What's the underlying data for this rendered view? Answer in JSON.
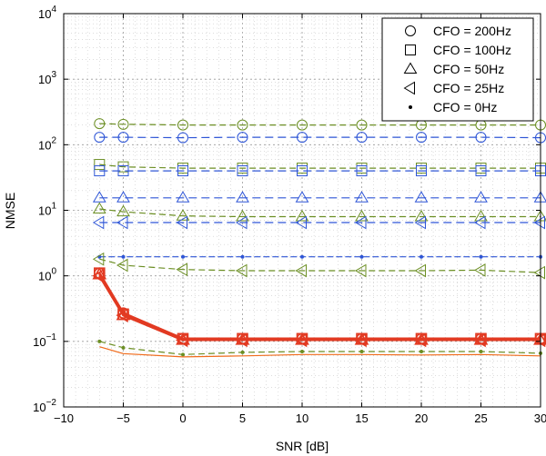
{
  "chart_data": {
    "type": "line",
    "xlabel": "SNR [dB]",
    "ylabel": "NMSE",
    "xlim": [
      -10,
      30
    ],
    "ylim": [
      0.01,
      10000
    ],
    "yscale": "log",
    "grid": true,
    "legend_placement": "top-right",
    "x_ticks": [
      "−10",
      "−5",
      "0",
      "5",
      "10",
      "15",
      "20",
      "25",
      "30"
    ],
    "x_tick_values": [
      -10,
      -5,
      0,
      5,
      10,
      15,
      20,
      25,
      30
    ],
    "y_ticks": [
      {
        "value": 0.01,
        "base": "10",
        "exp": "−2"
      },
      {
        "value": 0.1,
        "base": "10",
        "exp": "−1"
      },
      {
        "value": 1,
        "base": "10",
        "exp": "0"
      },
      {
        "value": 10,
        "base": "10",
        "exp": "1"
      },
      {
        "value": 100,
        "base": "10",
        "exp": "2"
      },
      {
        "value": 1000,
        "base": "10",
        "exp": "3"
      },
      {
        "value": 10000,
        "base": "10",
        "exp": "4"
      }
    ],
    "x": [
      -7,
      -5,
      0,
      5,
      10,
      15,
      20,
      25,
      30
    ],
    "legend": [
      {
        "label": "CFO = 200Hz",
        "marker": "circle"
      },
      {
        "label": "CFO = 100Hz",
        "marker": "square"
      },
      {
        "label": "CFO = 50Hz",
        "marker": "triangle-up"
      },
      {
        "label": "CFO = 25Hz",
        "marker": "triangle-left"
      },
      {
        "label": "CFO = 0Hz",
        "marker": "dot"
      }
    ],
    "series": [
      {
        "marker": "circle",
        "color": "#6b8e23",
        "dash": "7,4",
        "values": [
          210,
          205,
          200,
          200,
          200,
          200,
          200,
          200,
          200
        ]
      },
      {
        "marker": "circle",
        "color": "#2e55d6",
        "dash": "9,5",
        "values": [
          130,
          130,
          128,
          130,
          130,
          130,
          130,
          130,
          128
        ]
      },
      {
        "marker": "square",
        "color": "#6b8e23",
        "dash": "7,4",
        "values": [
          50,
          46,
          44,
          44,
          44,
          44,
          44,
          44,
          44
        ]
      },
      {
        "marker": "square",
        "color": "#2e55d6",
        "dash": "9,5",
        "values": [
          40,
          40,
          40,
          40,
          40,
          40,
          40,
          40,
          40
        ]
      },
      {
        "marker": "triangle-up",
        "color": "#2e55d6",
        "dash": "9,5",
        "values": [
          15.5,
          15.5,
          15.5,
          15.5,
          15.5,
          15.5,
          15.5,
          15.5,
          15.5
        ]
      },
      {
        "marker": "triangle-up",
        "color": "#6b8e23",
        "dash": "7,4",
        "values": [
          10.5,
          9.5,
          8.2,
          8.0,
          8.0,
          8.0,
          8.0,
          8.0,
          8.0
        ]
      },
      {
        "marker": "triangle-left",
        "color": "#2e55d6",
        "dash": "9,5",
        "values": [
          6.5,
          6.5,
          6.5,
          6.5,
          6.5,
          6.5,
          6.5,
          6.5,
          6.5
        ]
      },
      {
        "marker": "dot",
        "color": "#2e55d6",
        "dash": "7,3",
        "values": [
          1.95,
          1.95,
          1.95,
          1.95,
          1.95,
          1.95,
          1.95,
          1.95,
          1.95
        ]
      },
      {
        "marker": "triangle-left",
        "color": "#6b8e23",
        "dash": "7,4",
        "values": [
          1.8,
          1.45,
          1.25,
          1.2,
          1.2,
          1.2,
          1.2,
          1.22,
          1.12
        ]
      },
      {
        "marker": "circle",
        "color": "#e23a22",
        "dash": "",
        "width": 2.5,
        "values": [
          1.1,
          0.27,
          0.11,
          0.11,
          0.11,
          0.11,
          0.11,
          0.11,
          0.11
        ]
      },
      {
        "marker": "square",
        "color": "#e23a22",
        "dash": "",
        "width": 2.5,
        "values": [
          1.1,
          0.26,
          0.11,
          0.11,
          0.11,
          0.11,
          0.11,
          0.11,
          0.11
        ]
      },
      {
        "marker": "triangle-up",
        "color": "#e23a22",
        "dash": "",
        "width": 2.5,
        "values": [
          1.05,
          0.25,
          0.105,
          0.105,
          0.105,
          0.105,
          0.105,
          0.105,
          0.105
        ]
      },
      {
        "marker": "triangle-left",
        "color": "#e23a22",
        "dash": "",
        "width": 2.5,
        "values": [
          1.0,
          0.25,
          0.105,
          0.105,
          0.105,
          0.105,
          0.105,
          0.105,
          0.105
        ]
      },
      {
        "marker": "dot",
        "color": "#6b8e23",
        "dash": "7,4",
        "values": [
          0.1,
          0.08,
          0.063,
          0.068,
          0.07,
          0.07,
          0.07,
          0.07,
          0.066
        ]
      },
      {
        "marker": "none",
        "color": "#f06a1a",
        "dash": "",
        "values": [
          0.083,
          0.065,
          0.058,
          0.06,
          0.063,
          0.063,
          0.062,
          0.063,
          0.06
        ]
      }
    ]
  }
}
